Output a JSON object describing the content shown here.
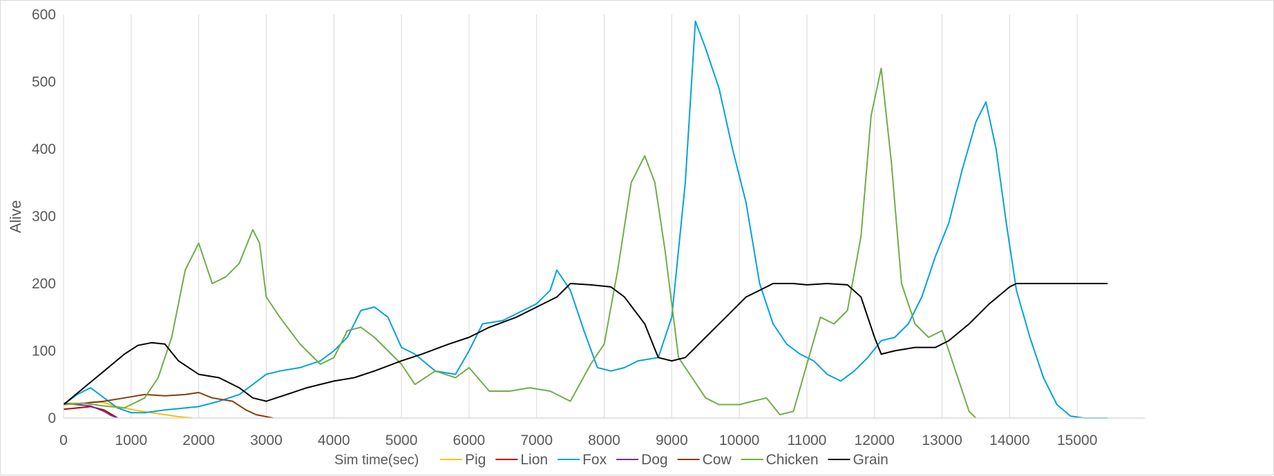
{
  "chart_data": {
    "type": "line",
    "title": "",
    "xlabel": "Sim time(sec)",
    "ylabel": "Alive",
    "xlim": [
      0,
      16000
    ],
    "ylim": [
      0,
      600
    ],
    "x_ticks": [
      0,
      1000,
      2000,
      3000,
      4000,
      5000,
      6000,
      7000,
      8000,
      9000,
      10000,
      11000,
      12000,
      13000,
      14000,
      15000
    ],
    "y_ticks": [
      0,
      100,
      200,
      300,
      400,
      500,
      600
    ],
    "grid": "vertical",
    "legend_position": "bottom",
    "series": [
      {
        "name": "Pig",
        "color": "#FFC000",
        "x": [
          0,
          150,
          300,
          450,
          600,
          750,
          900,
          1100,
          1300,
          1500,
          1700,
          1900
        ],
        "y": [
          22,
          22,
          22,
          24,
          23,
          18,
          15,
          11,
          8,
          5,
          2,
          0
        ]
      },
      {
        "name": "Lion",
        "color": "#C00000",
        "x": [
          0,
          200,
          400,
          600,
          700,
          800
        ],
        "y": [
          13,
          15,
          17,
          12,
          6,
          0
        ]
      },
      {
        "name": "Fox",
        "color": "#00A2DE",
        "x": [
          0,
          200,
          400,
          600,
          800,
          1000,
          1200,
          1500,
          1800,
          2000,
          2300,
          2600,
          2800,
          3000,
          3200,
          3500,
          3800,
          4000,
          4200,
          4400,
          4600,
          4800,
          5000,
          5200,
          5500,
          5800,
          6000,
          6200,
          6500,
          6800,
          7000,
          7200,
          7300,
          7500,
          7700,
          7900,
          8100,
          8300,
          8500,
          8800,
          9000,
          9200,
          9350,
          9500,
          9700,
          9900,
          10100,
          10300,
          10500,
          10700,
          10900,
          11100,
          11300,
          11500,
          11700,
          11900,
          12100,
          12300,
          12500,
          12700,
          12900,
          13100,
          13300,
          13500,
          13650,
          13800,
          13950,
          14100,
          14300,
          14500,
          14700,
          14900,
          15100,
          15300,
          15450
        ],
        "y": [
          20,
          35,
          45,
          30,
          15,
          8,
          8,
          12,
          15,
          17,
          25,
          35,
          50,
          65,
          70,
          75,
          85,
          100,
          120,
          160,
          165,
          150,
          105,
          95,
          70,
          65,
          100,
          140,
          145,
          160,
          170,
          190,
          220,
          190,
          130,
          75,
          70,
          75,
          85,
          90,
          150,
          350,
          590,
          550,
          490,
          400,
          320,
          200,
          140,
          110,
          95,
          85,
          65,
          55,
          70,
          90,
          115,
          120,
          140,
          180,
          240,
          290,
          370,
          440,
          470,
          400,
          290,
          190,
          120,
          60,
          20,
          3,
          0,
          0,
          0
        ]
      },
      {
        "name": "Dog",
        "color": "#7030A0",
        "x": [
          0,
          200,
          400,
          600,
          700,
          800
        ],
        "y": [
          22,
          20,
          18,
          10,
          4,
          0
        ]
      },
      {
        "name": "Cow",
        "color": "#843C0C",
        "x": [
          0,
          300,
          600,
          900,
          1200,
          1500,
          1800,
          2000,
          2200,
          2500,
          2700,
          2850,
          3000,
          3100
        ],
        "y": [
          20,
          22,
          25,
          30,
          35,
          33,
          35,
          38,
          30,
          25,
          12,
          5,
          2,
          0
        ]
      },
      {
        "name": "Chicken",
        "color": "#70AD47",
        "x": [
          0,
          300,
          600,
          900,
          1200,
          1400,
          1600,
          1800,
          2000,
          2200,
          2400,
          2600,
          2800,
          2900,
          3000,
          3200,
          3500,
          3800,
          4000,
          4200,
          4400,
          4600,
          4800,
          5000,
          5200,
          5500,
          5800,
          6000,
          6300,
          6600,
          6900,
          7200,
          7500,
          7800,
          8000,
          8200,
          8400,
          8600,
          8750,
          8900,
          9100,
          9300,
          9500,
          9700,
          10000,
          10200,
          10400,
          10600,
          10800,
          11000,
          11200,
          11400,
          11600,
          11800,
          11950,
          12100,
          12250,
          12400,
          12600,
          12800,
          13000,
          13200,
          13400,
          13500
        ],
        "y": [
          20,
          22,
          18,
          15,
          30,
          60,
          120,
          220,
          260,
          200,
          210,
          230,
          280,
          260,
          180,
          150,
          110,
          80,
          90,
          130,
          135,
          120,
          100,
          80,
          50,
          70,
          60,
          75,
          40,
          40,
          45,
          40,
          25,
          80,
          110,
          220,
          350,
          390,
          350,
          250,
          90,
          60,
          30,
          20,
          20,
          25,
          30,
          5,
          10,
          80,
          150,
          140,
          160,
          270,
          450,
          520,
          380,
          200,
          140,
          120,
          130,
          70,
          10,
          0
        ]
      },
      {
        "name": "Grain",
        "color": "#000000",
        "x": [
          0,
          300,
          600,
          900,
          1100,
          1300,
          1500,
          1700,
          2000,
          2300,
          2600,
          2800,
          3000,
          3300,
          3600,
          4000,
          4300,
          4600,
          5000,
          5300,
          5700,
          6000,
          6300,
          6700,
          7000,
          7300,
          7500,
          7800,
          8100,
          8300,
          8600,
          8800,
          9000,
          9200,
          9500,
          9800,
          10100,
          10300,
          10500,
          10800,
          11000,
          11300,
          11600,
          11800,
          12000,
          12100,
          12300,
          12600,
          12900,
          13100,
          13400,
          13700,
          14000,
          14100,
          14500,
          15000,
          15450
        ],
        "y": [
          20,
          45,
          70,
          95,
          108,
          112,
          110,
          85,
          65,
          60,
          45,
          30,
          25,
          35,
          45,
          55,
          60,
          70,
          85,
          95,
          110,
          120,
          135,
          150,
          165,
          180,
          200,
          198,
          195,
          180,
          140,
          90,
          85,
          90,
          120,
          150,
          180,
          190,
          200,
          200,
          198,
          200,
          198,
          180,
          120,
          95,
          100,
          105,
          105,
          115,
          140,
          170,
          195,
          200,
          200,
          200,
          200
        ]
      }
    ]
  }
}
